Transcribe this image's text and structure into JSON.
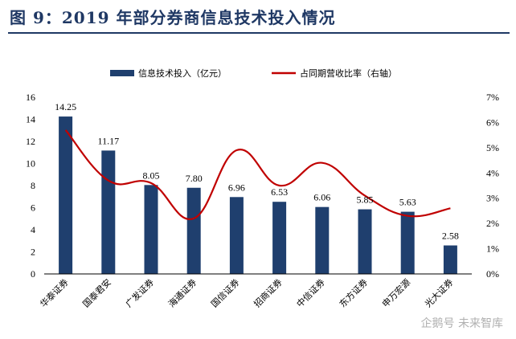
{
  "title": "图 9：2019 年部分券商信息技术投入情况",
  "watermark": "企鹅号 未来智库",
  "colors": {
    "bar": "#1f3f6e",
    "line": "#c00000",
    "title": "#1f3864"
  },
  "chart_data": {
    "type": "bar",
    "categories": [
      "华泰证券",
      "国泰君安",
      "广发证券",
      "海通证券",
      "国信证券",
      "招商证券",
      "中信证券",
      "东方证券",
      "申万宏源",
      "光大证券"
    ],
    "series": [
      {
        "name": "信息技术投入（亿元）",
        "type": "bar",
        "axis": "left",
        "values": [
          14.25,
          11.17,
          8.05,
          7.8,
          6.96,
          6.53,
          6.06,
          5.85,
          5.63,
          2.58
        ],
        "labels": [
          "14.25",
          "11.17",
          "8.05",
          "7.80",
          "6.96",
          "6.53",
          "6.06",
          "5.85",
          "5.63",
          "2.58"
        ]
      },
      {
        "name": "占同期营收比率（右轴）",
        "type": "line",
        "axis": "right",
        "unit": "%",
        "values": [
          5.7,
          3.7,
          3.6,
          2.2,
          4.9,
          3.5,
          4.4,
          3.1,
          2.3,
          2.6
        ]
      }
    ],
    "ylim": [
      0,
      16
    ],
    "yticks": [
      "0",
      "2",
      "4",
      "6",
      "8",
      "10",
      "12",
      "14",
      "16"
    ],
    "y2lim": [
      0,
      7
    ],
    "y2ticks": [
      "0%",
      "1%",
      "2%",
      "3%",
      "4%",
      "5%",
      "6%",
      "7%"
    ],
    "legend_position": "top"
  }
}
